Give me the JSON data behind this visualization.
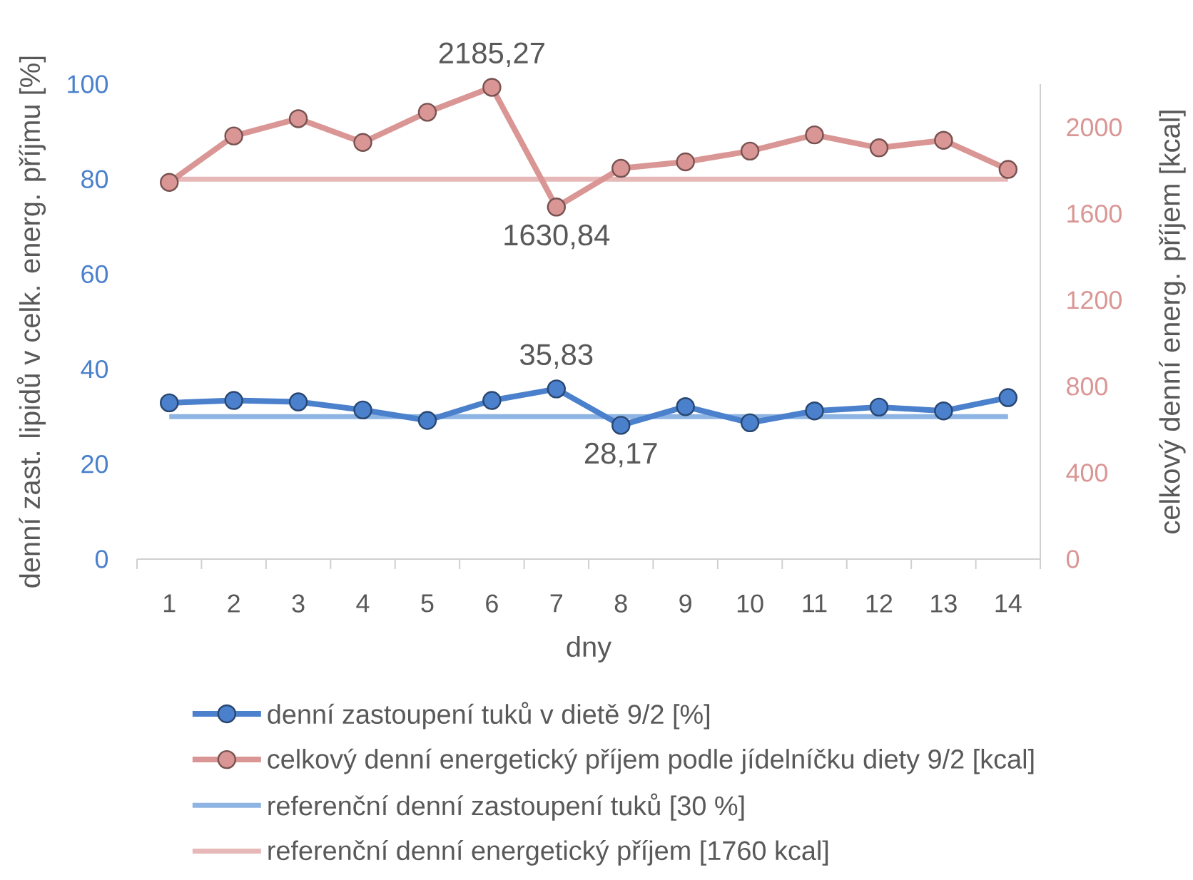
{
  "chart_data": {
    "type": "line",
    "xlabel": "dny",
    "ylabel": "denní zast. lipidů v celk. energ. příjmu [%]",
    "y2label": "celkový denní energ. příjem [kcal]",
    "categories": [
      "1",
      "2",
      "3",
      "4",
      "5",
      "6",
      "7",
      "8",
      "9",
      "10",
      "11",
      "12",
      "13",
      "14"
    ],
    "series": [
      {
        "name": "denní zastoupení tuků v dietě 9/2 [%]",
        "color": "#4a80cc",
        "values": [
          32.9,
          33.4,
          33.1,
          31.4,
          29.2,
          33.4,
          35.83,
          28.17,
          32.1,
          28.7,
          31.2,
          32.0,
          31.2,
          34.0
        ],
        "value_labels": [
          null,
          null,
          null,
          null,
          null,
          null,
          "35,83",
          "28,17",
          null,
          null,
          null,
          null,
          null,
          null
        ]
      },
      {
        "name": "celkový denní energetický příjem podle jídelníčku diety 9/2 [kcal]",
        "color": "#d99694",
        "axis": "y2",
        "values": [
          1745,
          1960,
          2040,
          1930,
          2070,
          2185.27,
          1630.84,
          1810,
          1840,
          1890,
          1965,
          1905,
          1940,
          1805
        ],
        "value_labels": [
          null,
          null,
          null,
          null,
          null,
          "2185,27",
          "1630,84",
          null,
          null,
          null,
          null,
          null,
          null,
          null
        ]
      }
    ],
    "ref_lines": [
      {
        "axis": "y",
        "value": 30,
        "label": "referenční denní zastoupení tuků [30 %]",
        "color": "#8db4e2"
      },
      {
        "axis": "y2",
        "value": 1760,
        "label": "referenční denní energetický příjem [1760 kcal]",
        "color": "#e6b9b8"
      }
    ],
    "ylim": [
      0,
      100
    ],
    "yticks": [
      0,
      20,
      40,
      60,
      80,
      100
    ],
    "y2lim": [
      0,
      2200
    ],
    "y2ticks": [
      0,
      400,
      800,
      1200,
      1600,
      2000
    ],
    "marker": "circle",
    "legend": "bottom"
  }
}
